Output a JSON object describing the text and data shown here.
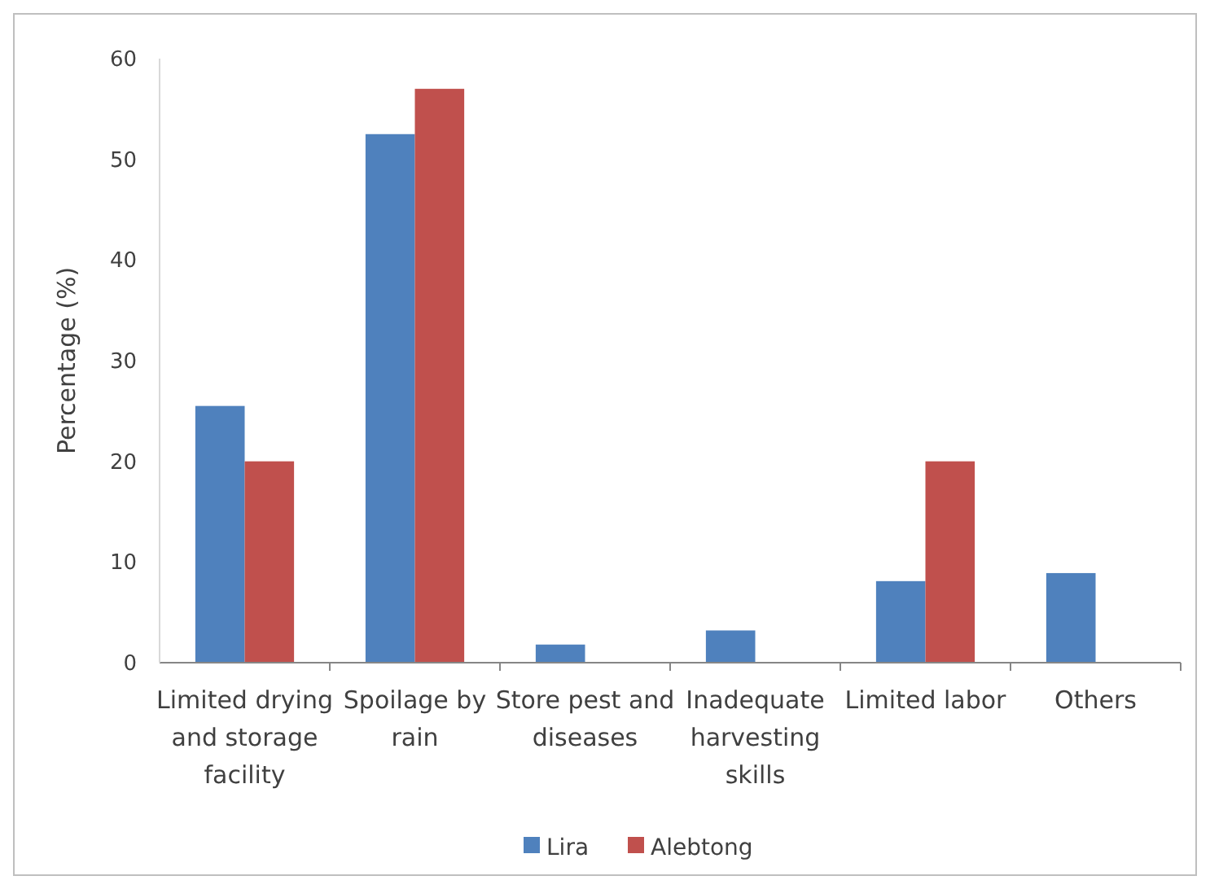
{
  "chart_data": {
    "type": "bar",
    "ylabel": "Percentage (%)",
    "categories": [
      "Limited drying and storage facility",
      "Spoilage by rain",
      "Store pest and diseases",
      "Inadequate harvesting skills",
      "Limited labor",
      "Others"
    ],
    "series": [
      {
        "name": "Lira",
        "color": "#4f81bd",
        "values": [
          25.5,
          52.5,
          1.8,
          3.2,
          8.1,
          8.9
        ]
      },
      {
        "name": "Alebtong",
        "color": "#c0504d",
        "values": [
          20,
          57,
          null,
          null,
          20,
          null
        ]
      }
    ],
    "ylim": [
      0,
      60
    ],
    "yticks": [
      0,
      10,
      20,
      30,
      40,
      50,
      60
    ],
    "grid": false,
    "legend": "bottom"
  }
}
